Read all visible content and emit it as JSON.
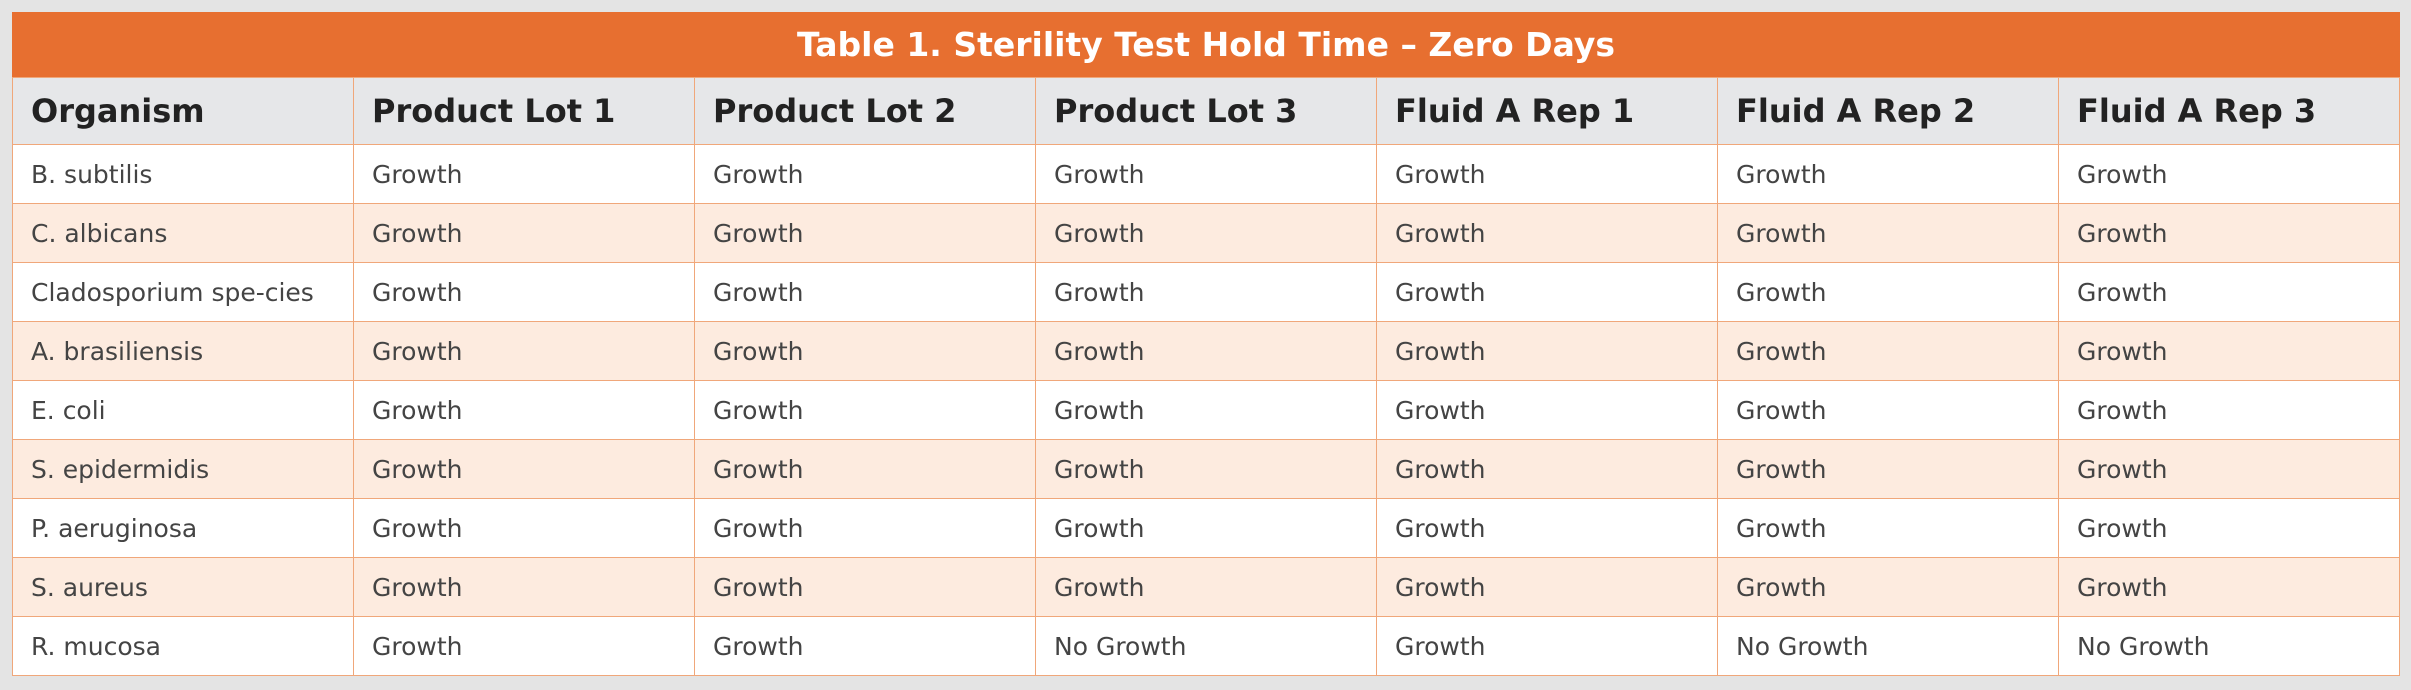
{
  "table": {
    "title": "Table 1. Sterility Test Hold Time – Zero Days",
    "columns": [
      "Organism",
      "Product Lot 1",
      "Product Lot 2",
      "Product Lot 3",
      "Fluid A Rep 1",
      "Fluid A Rep 2",
      "Fluid A Rep 3"
    ],
    "rows": [
      [
        "B. subtilis",
        "Growth",
        "Growth",
        "Growth",
        "Growth",
        "Growth",
        "Growth"
      ],
      [
        "C. albicans",
        "Growth",
        "Growth",
        "Growth",
        "Growth",
        "Growth",
        "Growth"
      ],
      [
        "Cladosporium spe-cies",
        "Growth",
        "Growth",
        "Growth",
        "Growth",
        "Growth",
        "Growth"
      ],
      [
        "A. brasiliensis",
        "Growth",
        "Growth",
        "Growth",
        "Growth",
        "Growth",
        "Growth"
      ],
      [
        "E. coli",
        "Growth",
        "Growth",
        "Growth",
        "Growth",
        "Growth",
        "Growth"
      ],
      [
        "S. epidermidis",
        "Growth",
        "Growth",
        "Growth",
        "Growth",
        "Growth",
        "Growth"
      ],
      [
        "P. aeruginosa",
        "Growth",
        "Growth",
        "Growth",
        "Growth",
        "Growth",
        "Growth"
      ],
      [
        "S. aureus",
        "Growth",
        "Growth",
        "Growth",
        "Growth",
        "Growth",
        "Growth"
      ],
      [
        "R. mucosa",
        "Growth",
        "Growth",
        "No Growth",
        "Growth",
        "No Growth",
        "No Growth"
      ]
    ]
  }
}
